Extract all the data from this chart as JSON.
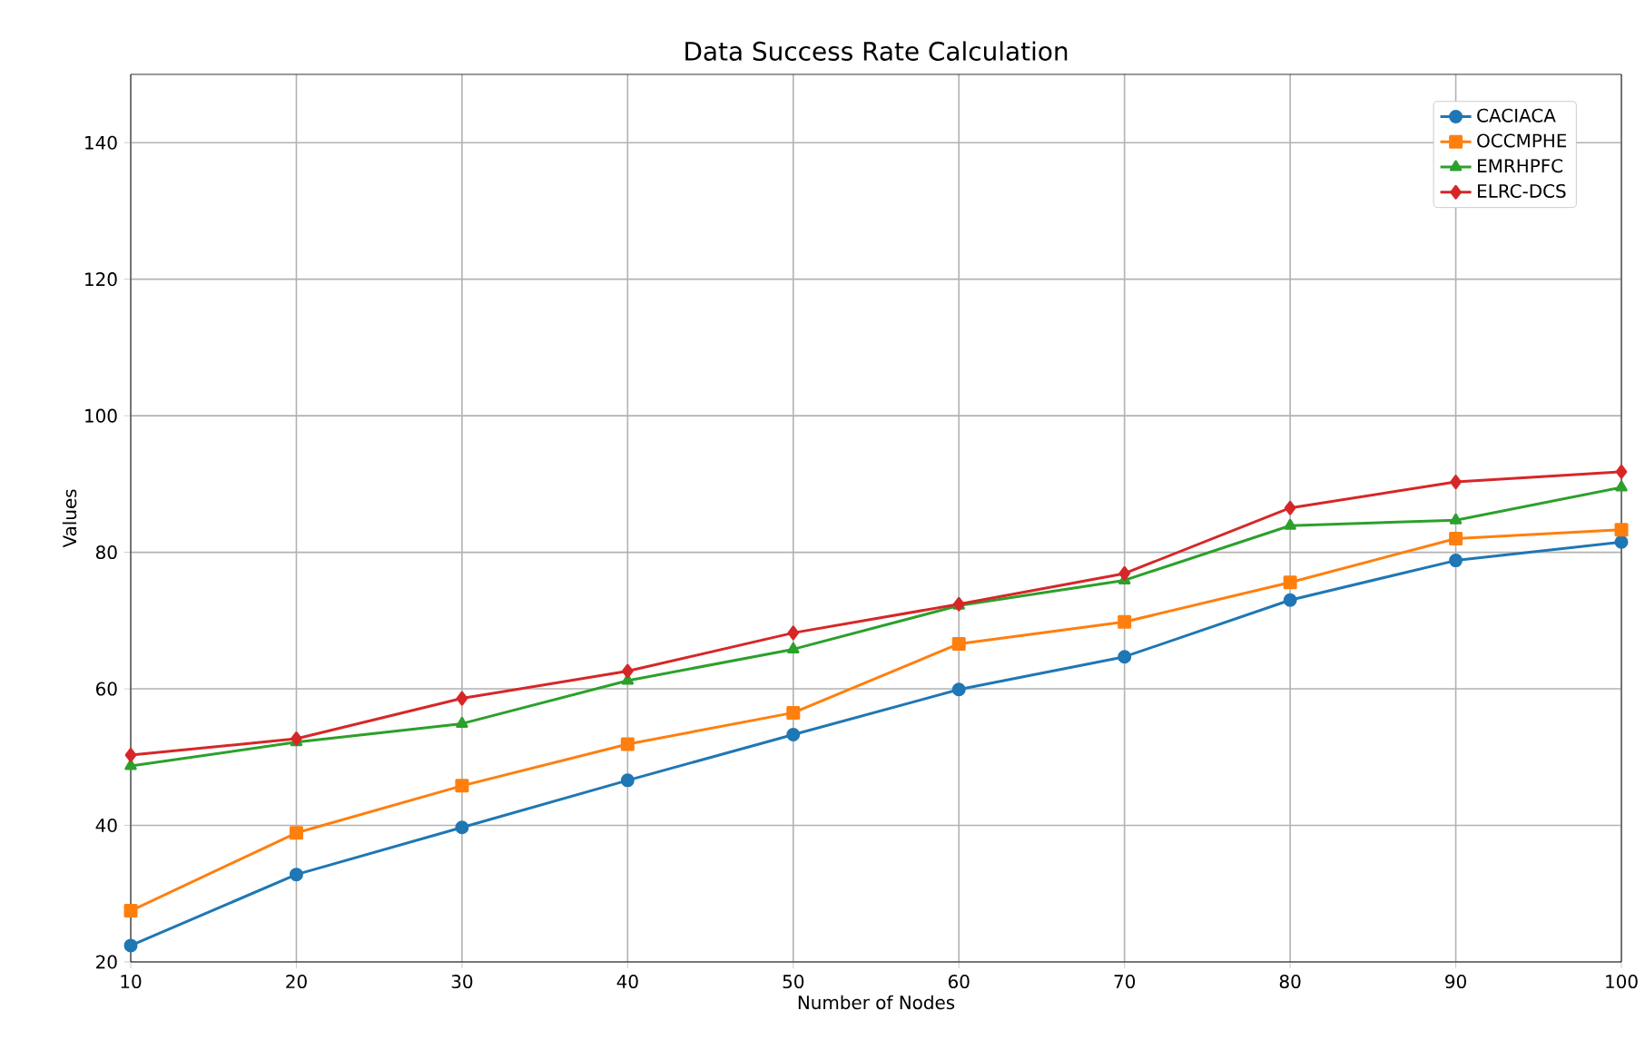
{
  "chart_data": {
    "type": "line",
    "title": "Data Success Rate Calculation",
    "xlabel": "Number of Nodes",
    "ylabel": "Values",
    "x": [
      10,
      20,
      30,
      40,
      50,
      60,
      70,
      80,
      90,
      100
    ],
    "series": [
      {
        "name": "CACIACA",
        "color": "#1f77b4",
        "marker": "circle",
        "values": [
          22.4,
          32.8,
          39.7,
          46.6,
          53.3,
          59.9,
          64.7,
          73.0,
          78.8,
          81.5
        ]
      },
      {
        "name": "OCCMPHE",
        "color": "#ff7f0e",
        "marker": "square",
        "values": [
          27.5,
          38.9,
          45.8,
          51.9,
          56.5,
          66.6,
          69.8,
          75.6,
          82.0,
          83.3
        ]
      },
      {
        "name": "EMRHPFC",
        "color": "#2ca02c",
        "marker": "triangle",
        "values": [
          48.7,
          52.2,
          54.9,
          61.2,
          65.8,
          72.2,
          75.9,
          83.9,
          84.7,
          89.5
        ]
      },
      {
        "name": "ELRC-DCS",
        "color": "#d62728",
        "marker": "diamond",
        "values": [
          50.3,
          52.7,
          58.6,
          62.6,
          68.2,
          72.4,
          76.9,
          86.5,
          90.3,
          91.8
        ]
      }
    ],
    "xlim": [
      10,
      100
    ],
    "ylim": [
      20,
      150
    ],
    "xticks": [
      10,
      20,
      30,
      40,
      50,
      60,
      70,
      80,
      90,
      100
    ],
    "yticks": [
      20,
      40,
      60,
      80,
      100,
      120,
      140
    ],
    "grid": true,
    "legend": "top right",
    "line_style": "solid"
  }
}
